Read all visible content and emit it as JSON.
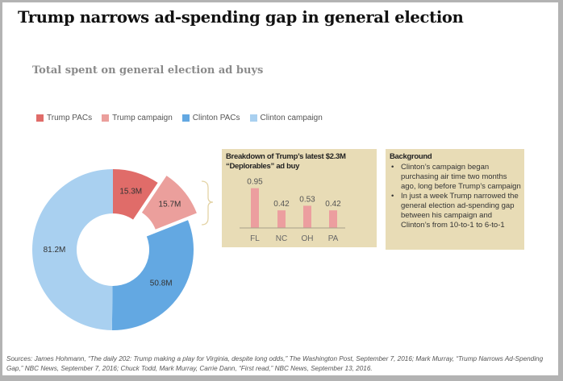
{
  "header": {
    "title": "Trump narrows ad-spending gap in general election",
    "subtitle": "Total spent on general election ad buys"
  },
  "colors": {
    "trump_pacs": "#e06c69",
    "trump_campaign": "#eb9f9c",
    "clinton_pacs": "#63a8e2",
    "clinton_campaign": "#a9d0f0",
    "callout_bg": "#e8dcb6",
    "bar": "#ec9e9f",
    "bracket": "#e3d3a5"
  },
  "chart_data": [
    {
      "type": "pie",
      "variant": "donut",
      "title": "Total spent on general election ad buys",
      "legend_position": "top-left",
      "categories": [
        "Trump PACs",
        "Trump campaign",
        "Clinton PACs",
        "Clinton campaign"
      ],
      "values": [
        15.3,
        15.7,
        50.8,
        81.2
      ],
      "unit": "M",
      "labels": [
        "15.3M",
        "15.7M",
        "50.8M",
        "81.2M"
      ],
      "exploded": [
        "Trump campaign"
      ]
    },
    {
      "type": "bar",
      "title": "Breakdown of Trump’s latest $2.3M “Deplorables” ad buy",
      "categories": [
        "FL",
        "NC",
        "OH",
        "PA"
      ],
      "values": [
        0.95,
        0.42,
        0.53,
        0.42
      ],
      "labels": [
        "0.95",
        "0.42",
        "0.53",
        "0.42"
      ],
      "xlabel": "",
      "ylabel": "",
      "ylim": [
        0,
        1.0
      ],
      "grid": false
    }
  ],
  "legend": [
    {
      "label": "Trump PACs"
    },
    {
      "label": "Trump campaign"
    },
    {
      "label": "Clinton PACs"
    },
    {
      "label": "Clinton campaign"
    }
  ],
  "breakdown_box": {
    "title_line1": "Breakdown of Trump’s latest $2.3M",
    "title_line2": "“Deplorables” ad buy"
  },
  "background_box": {
    "title": "Background",
    "bullets": [
      "Clinton’s campaign began purchasing air time two months ago, long before Trump’s campaign",
      "In just a week Trump narrowed the general election ad-spending gap between his campaign and Clinton’s from 10-to-1 to 6-to-1"
    ]
  },
  "sources": "Sources: James Hohmann, “The daily 202: Trump making a  play for Virginia, despite long odds,” The Washington Post, September 7, 2016; Mark Murray, “Trump Narrows Ad-Spending Gap,” NBC News, September 7, 2016; Chuck Todd, Mark Murray, Carrie Dann, “First read,” NBC News, September 13, 2016."
}
